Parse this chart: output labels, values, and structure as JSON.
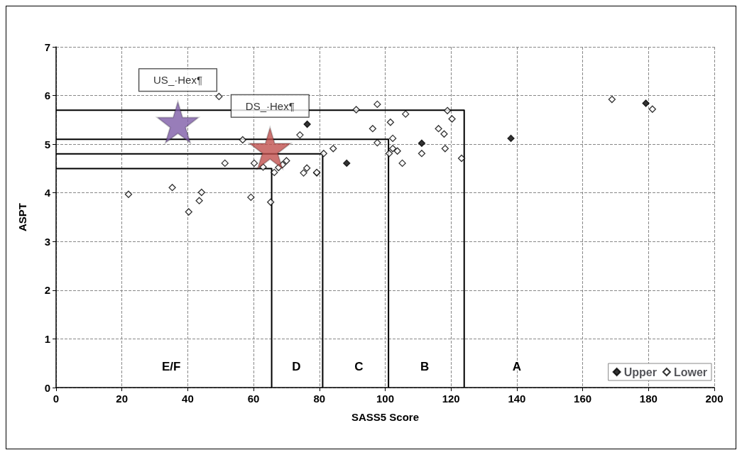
{
  "chart_data": {
    "type": "scatter",
    "xlabel": "SASS5 Score",
    "ylabel": "ASPT",
    "xlim": [
      0,
      200
    ],
    "xticks": [
      0,
      20,
      40,
      60,
      80,
      100,
      120,
      140,
      160,
      180,
      200
    ],
    "ylim": [
      0,
      7
    ],
    "yticks": [
      0,
      1,
      2,
      3,
      4,
      5,
      6,
      7
    ],
    "grid": true,
    "legend": "bottom right",
    "marker": "diamond",
    "series": [
      {
        "type": "line",
        "color": "#000000",
        "marker": "none",
        "x": [
          0,
          124,
          124
        ],
        "values": [
          5.7,
          5.7,
          0
        ]
      },
      {
        "type": "line",
        "color": "#000000",
        "marker": "none",
        "x": [
          0,
          101,
          101
        ],
        "values": [
          5.1,
          5.1,
          0
        ]
      },
      {
        "type": "line",
        "color": "#000000",
        "marker": "none",
        "x": [
          0,
          81,
          81
        ],
        "values": [
          4.8,
          4.8,
          0
        ]
      },
      {
        "type": "line",
        "color": "#000000",
        "marker": "none",
        "x": [
          0,
          65.5,
          65.5
        ],
        "values": [
          4.5,
          4.5,
          0
        ]
      },
      {
        "name": "Upper",
        "color": "#000000",
        "x": [
          76.3,
          88.3,
          111.1,
          138.2,
          179.2
        ],
        "values": [
          5.41,
          4.61,
          5.02,
          5.12,
          5.84
        ]
      },
      {
        "name": "Lower",
        "color": "#ffffff",
        "x": [
          22,
          35.3,
          40.3,
          43.5,
          44.2,
          49.5,
          51.3,
          56.7,
          59.2,
          60.2,
          62.9,
          65.2,
          66.3,
          67.6,
          68.8,
          70,
          74.1,
          75.2,
          76.2,
          79.2,
          79.2,
          81.3,
          84.2,
          91.2,
          96.2,
          97.6,
          97.6,
          101.2,
          101.6,
          102.3,
          102.3,
          103.7,
          105.2,
          106.2,
          111.1,
          116.2,
          117.9,
          118.2,
          118.9,
          120.3,
          123.2,
          168.9,
          181.2
        ],
        "values": [
          3.97,
          4.11,
          3.61,
          3.84,
          4.01,
          5.98,
          4.61,
          5.09,
          3.91,
          4.61,
          4.53,
          3.81,
          4.42,
          4.52,
          4.58,
          4.66,
          5.19,
          4.41,
          4.51,
          4.41,
          4.42,
          4.81,
          4.91,
          5.71,
          5.32,
          5.82,
          5.03,
          4.81,
          5.45,
          5.12,
          4.91,
          4.86,
          4.61,
          5.62,
          4.81,
          5.32,
          5.21,
          4.91,
          5.69,
          5.52,
          4.71,
          5.92,
          5.72
        ]
      },
      {
        "name": "US_·Hex¶",
        "color": "#7e5ca8",
        "marker": "star",
        "x": [
          37
        ],
        "values": [
          5.45
        ]
      },
      {
        "name": "DS_·Hex¶",
        "color": "#c0504d",
        "marker": "star",
        "x": [
          65
        ],
        "values": [
          4.92
        ]
      }
    ],
    "annotations": [
      "E/F",
      "D",
      "C",
      "B",
      "A"
    ]
  }
}
